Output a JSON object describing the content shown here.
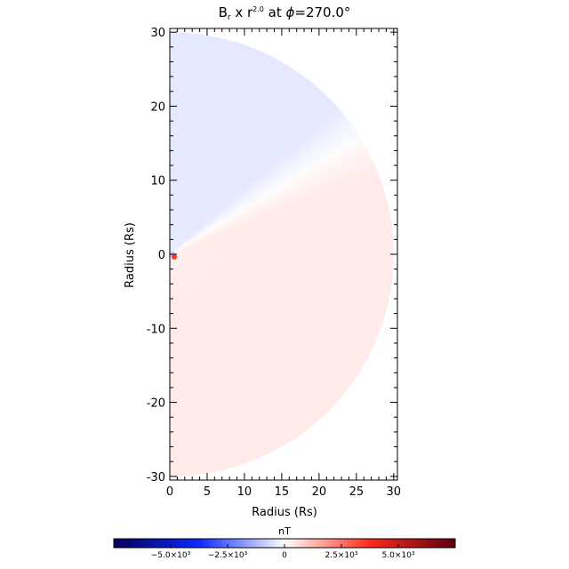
{
  "chart_data": {
    "type": "heatmap",
    "title": {
      "B": "B",
      "sub_r": "r",
      "times": " x r",
      "exp": "2.0",
      "at": " at ",
      "phi": "ϕ",
      "eq": "=270.0°"
    },
    "xlabel": "Radius (Rs)",
    "ylabel": "Radius (Rs)",
    "xlim": [
      0,
      30.5
    ],
    "ylim": [
      -30.5,
      30.5
    ],
    "outer_radius": 30,
    "x_ticks": [
      "0",
      "5",
      "10",
      "15",
      "20",
      "25",
      "30"
    ],
    "x_tick_values": [
      0,
      5,
      10,
      15,
      20,
      25,
      30
    ],
    "y_ticks": [
      "-30",
      "-20",
      "-10",
      "0",
      "10",
      "20",
      "30"
    ],
    "y_tick_values": [
      -30,
      -20,
      -10,
      0,
      10,
      20,
      30
    ],
    "neutral_line_angle_deg": 32,
    "regions": [
      {
        "name": "negative polarity",
        "angle_from_deg": 32,
        "angle_to_deg": 90,
        "value": -400
      },
      {
        "name": "positive polarity",
        "angle_from_deg": -90,
        "angle_to_deg": 32,
        "value": 350
      }
    ],
    "colorbar": {
      "title": "nT",
      "range": [
        -7500,
        7500
      ],
      "tick_labels": [
        "−5.0×10³",
        "−2.5×10³",
        "0",
        "2.5×10³",
        "5.0×10³"
      ],
      "tick_values": [
        -5000,
        -2500,
        0,
        2500,
        5000
      ],
      "colormap": [
        "#08005a",
        "#0a28ff",
        "#ffffff",
        "#ff2a1a",
        "#5e0010"
      ]
    }
  }
}
